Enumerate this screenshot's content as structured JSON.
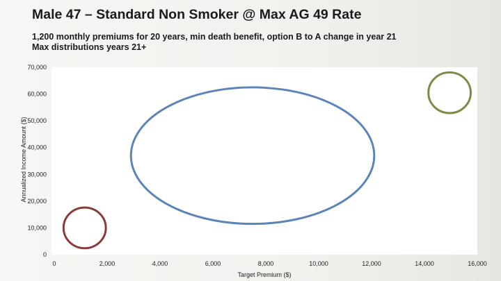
{
  "slide": {
    "title": "Male 47 – Standard Non Smoker @ Max AG 49 Rate",
    "subtitle_lines": [
      "1,200 monthly premiums for 20 years, min death benefit, option B to A change in year 21",
      "Max distributions years 21+"
    ]
  },
  "chart_data": {
    "type": "scatter",
    "title": "",
    "xlabel": "Target Premium ($)",
    "ylabel": "Annualized Income Amount ($)",
    "xlim": [
      0,
      16000
    ],
    "ylim": [
      0,
      70000
    ],
    "x_ticks": [
      0,
      2000,
      4000,
      6000,
      8000,
      10000,
      12000,
      14000,
      16000
    ],
    "x_tick_labels": [
      "0",
      "2,000",
      "4,000",
      "6,000",
      "8,000",
      "10,000",
      "12,000",
      "14,000",
      "16,000"
    ],
    "y_ticks": [
      0,
      10000,
      20000,
      30000,
      40000,
      50000,
      60000,
      70000
    ],
    "y_tick_labels": [
      "0",
      "10,000",
      "20,000",
      "30,000",
      "40,000",
      "50,000",
      "60,000",
      "70,000"
    ],
    "grid": false,
    "legend": "none",
    "ellipses": [
      {
        "cx": 1150,
        "cy": 10000,
        "rx": 800,
        "ry": 7600,
        "color": "#8b3a3a"
      },
      {
        "cx": 7500,
        "cy": 37000,
        "rx": 4600,
        "ry": 25500,
        "color": "#5b84b8"
      },
      {
        "cx": 14950,
        "cy": 60500,
        "rx": 800,
        "ry": 7600,
        "color": "#7a8c45"
      }
    ]
  }
}
